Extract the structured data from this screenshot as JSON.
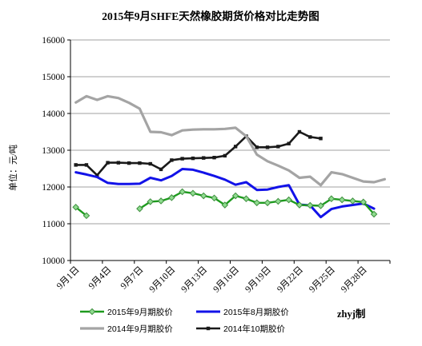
{
  "chart_data": {
    "type": "line",
    "title": "2015年9月SHFE天然橡胶期货价格对比走势图",
    "ylabel": "单位：元/吨",
    "ylim": [
      10000,
      16000
    ],
    "yticks": [
      10000,
      11000,
      12000,
      13000,
      14000,
      15000,
      16000
    ],
    "x": [
      1,
      2,
      3,
      4,
      5,
      6,
      7,
      8,
      9,
      10,
      11,
      12,
      13,
      14,
      15,
      16,
      17,
      18,
      19,
      20,
      21,
      22,
      23,
      24,
      25,
      26,
      27,
      28,
      29,
      30
    ],
    "xticks": [
      {
        "x": 1,
        "label": "9月1日"
      },
      {
        "x": 4,
        "label": "9月4日"
      },
      {
        "x": 7,
        "label": "9月7日"
      },
      {
        "x": 10,
        "label": "9月10日"
      },
      {
        "x": 13,
        "label": "9月13日"
      },
      {
        "x": 16,
        "label": "9月16日"
      },
      {
        "x": 19,
        "label": "9月19日"
      },
      {
        "x": 22,
        "label": "9月22日"
      },
      {
        "x": 25,
        "label": "9月25日"
      },
      {
        "x": 28,
        "label": "9月28日"
      }
    ],
    "grid": {
      "horizontal": true,
      "vertical": false
    },
    "legend": "bottom",
    "credit": "zhyj制",
    "series": [
      {
        "name": "2015年9月期胶价",
        "color": "#1e9b1e",
        "marker": "diamond",
        "marker_fill": "#8fdc8f",
        "marker_edge": "#3f8f3f",
        "values": [
          11450,
          11220,
          null,
          null,
          null,
          null,
          11410,
          11600,
          11620,
          11710,
          11870,
          11830,
          11760,
          11700,
          11510,
          11760,
          11680,
          11570,
          11570,
          11610,
          11650,
          11510,
          11500,
          11490,
          11680,
          11650,
          11620,
          11590,
          11260,
          null
        ]
      },
      {
        "name": "2015年8月期胶价",
        "color": "#1212e8",
        "marker": "none",
        "values": [
          12400,
          12340,
          12270,
          12110,
          12080,
          12080,
          12090,
          12250,
          12180,
          12300,
          12490,
          12470,
          12390,
          12300,
          12200,
          12060,
          12130,
          11920,
          11930,
          12000,
          12050,
          11520,
          11500,
          11180,
          11400,
          11470,
          11510,
          11550,
          11410,
          null
        ]
      },
      {
        "name": "2014年9月期胶价",
        "color": "#a4a4a4",
        "marker": "none",
        "values": [
          14300,
          14470,
          14370,
          14470,
          14420,
          14290,
          14130,
          13500,
          13490,
          13410,
          13540,
          13560,
          13570,
          13570,
          13580,
          13610,
          13380,
          12880,
          12700,
          12580,
          12450,
          12250,
          12280,
          12050,
          12400,
          12350,
          12250,
          12150,
          12130,
          12210
        ]
      },
      {
        "name": "2014年10期胶价",
        "color": "#1a1a1a",
        "marker": "square",
        "values": [
          12600,
          12600,
          12320,
          12660,
          12660,
          12650,
          12650,
          12630,
          12480,
          12730,
          12770,
          12780,
          12790,
          12800,
          12850,
          13100,
          13380,
          13080,
          13080,
          13100,
          13180,
          13500,
          13360,
          13320,
          null,
          null,
          null,
          null,
          null,
          null
        ]
      }
    ]
  }
}
